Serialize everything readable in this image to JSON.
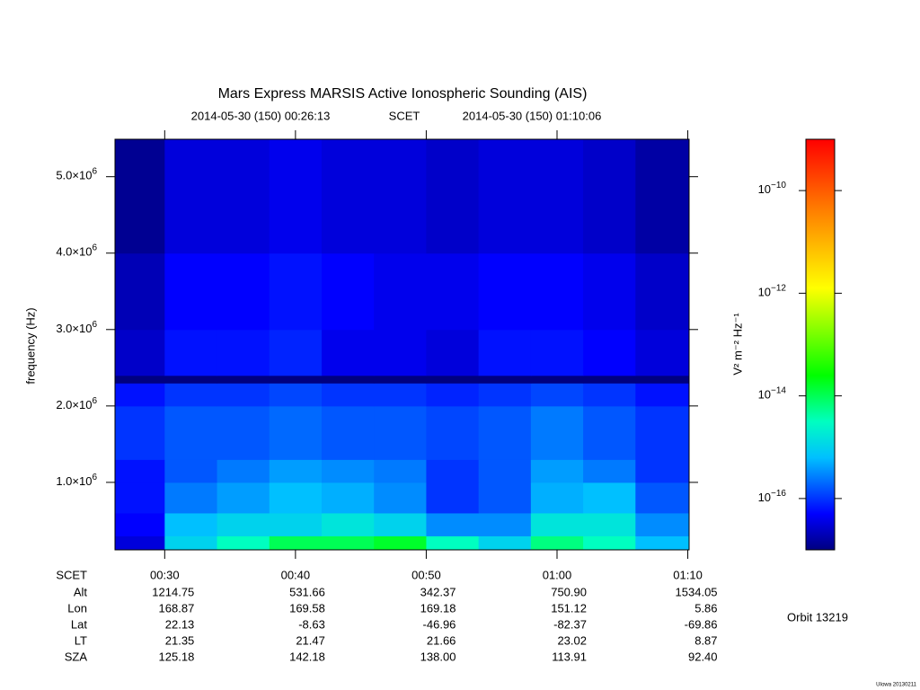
{
  "chart_data": {
    "type": "heatmap",
    "title": "Mars Express MARSIS Active Ionospheric Sounding (AIS)",
    "subtitle": {
      "start": "2014-05-30 (150) 00:26:13",
      "middle": "SCET",
      "end": "2014-05-30 (150) 01:10:06"
    },
    "ylabel": "frequency (Hz)",
    "zlabel": "V² m⁻² Hz⁻¹",
    "xlim": [
      26.2,
      70.1
    ],
    "xticks": [
      {
        "value": 30,
        "label": "00:30"
      },
      {
        "value": 40,
        "label": "00:40"
      },
      {
        "value": 50,
        "label": "00:50"
      },
      {
        "value": 60,
        "label": "01:00"
      },
      {
        "value": 70,
        "label": "01:10"
      }
    ],
    "ylim": [
      117000,
      5490000
    ],
    "yticks": [
      {
        "value": 1000000,
        "label": "1.0×10",
        "exp": "6"
      },
      {
        "value": 2000000,
        "label": "2.0×10",
        "exp": "6"
      },
      {
        "value": 3000000,
        "label": "3.0×10",
        "exp": "6"
      },
      {
        "value": 4000000,
        "label": "4.0×10",
        "exp": "6"
      },
      {
        "value": 5000000,
        "label": "5.0×10",
        "exp": "6"
      }
    ],
    "zlim": [
      -17,
      -9
    ],
    "zticks": [
      {
        "value": -16,
        "label": "10",
        "exp": "−16"
      },
      {
        "value": -14,
        "label": "10",
        "exp": "−14"
      },
      {
        "value": -12,
        "label": "10",
        "exp": "−12"
      },
      {
        "value": -10,
        "label": "10",
        "exp": "−10"
      }
    ],
    "colormap": [
      {
        "value": -17,
        "color": "#000080"
      },
      {
        "value": -16.3,
        "color": "#0000ff"
      },
      {
        "value": -15.2,
        "color": "#00c0ff"
      },
      {
        "value": -14.5,
        "color": "#00ffc0"
      },
      {
        "value": -13.6,
        "color": "#00ff00"
      },
      {
        "value": -11.9,
        "color": "#ffff00"
      },
      {
        "value": -10.4,
        "color": "#ff8000"
      },
      {
        "value": -9,
        "color": "#ff0000"
      }
    ],
    "xbins": [
      26.2,
      30,
      34,
      38,
      42,
      46,
      50,
      54,
      58,
      62,
      66,
      70.1
    ],
    "ybins": [
      117000,
      300000,
      600000,
      1000000,
      1300000,
      2000000,
      2300000,
      2400000,
      3000000,
      4000000,
      5490000
    ],
    "values": [
      [
        -16.5,
        -15,
        -14.5,
        -14,
        -14,
        -13.8,
        -14.5,
        -15,
        -14.2,
        -14.5,
        -15.2
      ],
      [
        -16.3,
        -15.2,
        -15,
        -15,
        -14.8,
        -15,
        -15.5,
        -15.5,
        -14.8,
        -14.8,
        -15.5
      ],
      [
        -16.2,
        -15.6,
        -15.4,
        -15.2,
        -15.3,
        -15.5,
        -16,
        -15.8,
        -15.3,
        -15.2,
        -15.8
      ],
      [
        -16.2,
        -15.8,
        -15.6,
        -15.4,
        -15.5,
        -15.6,
        -16,
        -15.8,
        -15.4,
        -15.6,
        -16
      ],
      [
        -16,
        -15.8,
        -15.8,
        -15.7,
        -15.8,
        -15.8,
        -15.9,
        -15.8,
        -15.6,
        -15.8,
        -16
      ],
      [
        -16.2,
        -16,
        -16,
        -15.9,
        -16,
        -16,
        -16.1,
        -16,
        -15.9,
        -16,
        -16.2
      ],
      [
        -17,
        -17,
        -17,
        -17,
        -17,
        -17,
        -17,
        -17,
        -17,
        -17,
        -17
      ],
      [
        -16.6,
        -16.2,
        -16.2,
        -16.1,
        -16.4,
        -16.4,
        -16.5,
        -16.2,
        -16.2,
        -16.3,
        -16.5
      ],
      [
        -16.7,
        -16.3,
        -16.3,
        -16.2,
        -16.3,
        -16.4,
        -16.4,
        -16.3,
        -16.3,
        -16.4,
        -16.6
      ],
      [
        -16.9,
        -16.5,
        -16.5,
        -16.4,
        -16.5,
        -16.5,
        -16.6,
        -16.5,
        -16.5,
        -16.6,
        -16.8
      ]
    ],
    "xlabel": "SCET",
    "ephemeris": [
      {
        "label": "Alt",
        "values": [
          "1214.75",
          "531.66",
          "342.37",
          "750.90",
          "1534.05"
        ]
      },
      {
        "label": "Lon",
        "values": [
          "168.87",
          "169.58",
          "169.18",
          "151.12",
          "5.86"
        ]
      },
      {
        "label": "Lat",
        "values": [
          "22.13",
          "-8.63",
          "-46.96",
          "-82.37",
          "-69.86"
        ]
      },
      {
        "label": "LT",
        "values": [
          "21.35",
          "21.47",
          "21.66",
          "23.02",
          "8.87"
        ]
      },
      {
        "label": "SZA",
        "values": [
          "125.18",
          "142.18",
          "138.00",
          "113.91",
          "92.40"
        ]
      }
    ],
    "orbit": "Orbit 13219",
    "footer": "UIowa 20130211"
  }
}
